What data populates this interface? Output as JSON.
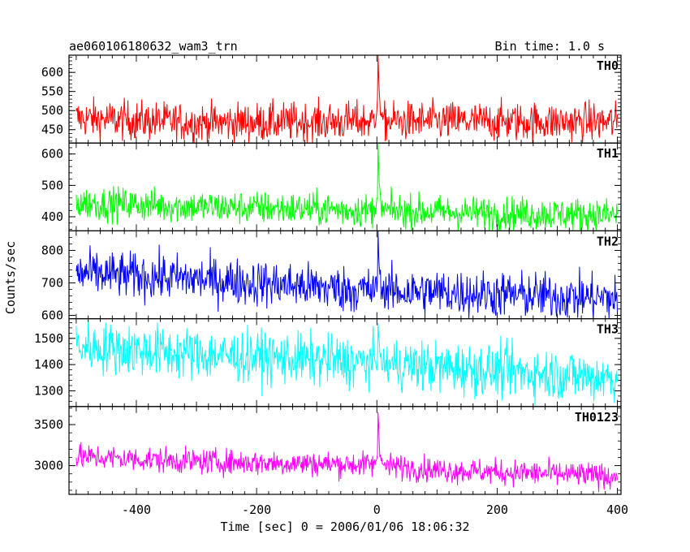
{
  "chart_data": {
    "type": "line",
    "title": "ae060106180632_wam3_trn",
    "subtitle": "Bin time: 1.0 s",
    "xlabel": "Time [sec] 0 = 2006/01/06 18:06:32",
    "ylabel": "Counts/sec",
    "xlim": [
      -512,
      406
    ],
    "xticks": [
      -400,
      -200,
      0,
      200,
      400
    ],
    "grid": false,
    "panels": [
      {
        "name": "TH0",
        "color": "#ff0000",
        "ylim": [
          415,
          645
        ],
        "yticks": [
          450,
          500,
          550,
          600
        ],
        "baseline": [
          [
            -500,
            480
          ],
          [
            -300,
            468
          ],
          [
            0,
            472
          ],
          [
            100,
            472
          ],
          [
            400,
            470
          ]
        ],
        "noise": 26,
        "peak": {
          "x": 2,
          "y": 640
        },
        "min": 415,
        "max": 645
      },
      {
        "name": "TH1",
        "color": "#00ff00",
        "ylim": [
          355,
          635
        ],
        "yticks": [
          400,
          500,
          600
        ],
        "baseline": [
          [
            -500,
            445
          ],
          [
            -300,
            432
          ],
          [
            0,
            420
          ],
          [
            100,
            415
          ],
          [
            400,
            405
          ]
        ],
        "noise": 27,
        "peak": {
          "x": 2,
          "y": 632
        },
        "min": 355,
        "max": 635
      },
      {
        "name": "TH2",
        "color": "#0000ff",
        "ylim": [
          590,
          860
        ],
        "yticks": [
          600,
          700,
          800
        ],
        "baseline": [
          [
            -500,
            730
          ],
          [
            -300,
            712
          ],
          [
            0,
            675
          ],
          [
            100,
            672
          ],
          [
            400,
            652
          ]
        ],
        "noise": 36,
        "peak": {
          "x": 2,
          "y": 860
        },
        "min": 590,
        "max": 860
      },
      {
        "name": "TH3",
        "color": "#00ffff",
        "ylim": [
          1240,
          1575
        ],
        "yticks": [
          1300,
          1400,
          1500
        ],
        "baseline": [
          [
            -500,
            1470
          ],
          [
            -300,
            1440
          ],
          [
            0,
            1405
          ],
          [
            100,
            1390
          ],
          [
            400,
            1350
          ]
        ],
        "noise": 50,
        "peak": {
          "x": 2,
          "y": 1560
        },
        "min": 1245,
        "max": 1572
      },
      {
        "name": "TH0123",
        "color": "#ff00ff",
        "ylim": [
          2650,
          3720
        ],
        "yticks": [
          3000,
          3500
        ],
        "baseline": [
          [
            -500,
            3110
          ],
          [
            -300,
            3050
          ],
          [
            0,
            3010
          ],
          [
            100,
            2950
          ],
          [
            400,
            2870
          ]
        ],
        "noise": 78,
        "peak": {
          "x": 2,
          "y": 3720
        },
        "min": 2650,
        "max": 3720
      }
    ]
  }
}
